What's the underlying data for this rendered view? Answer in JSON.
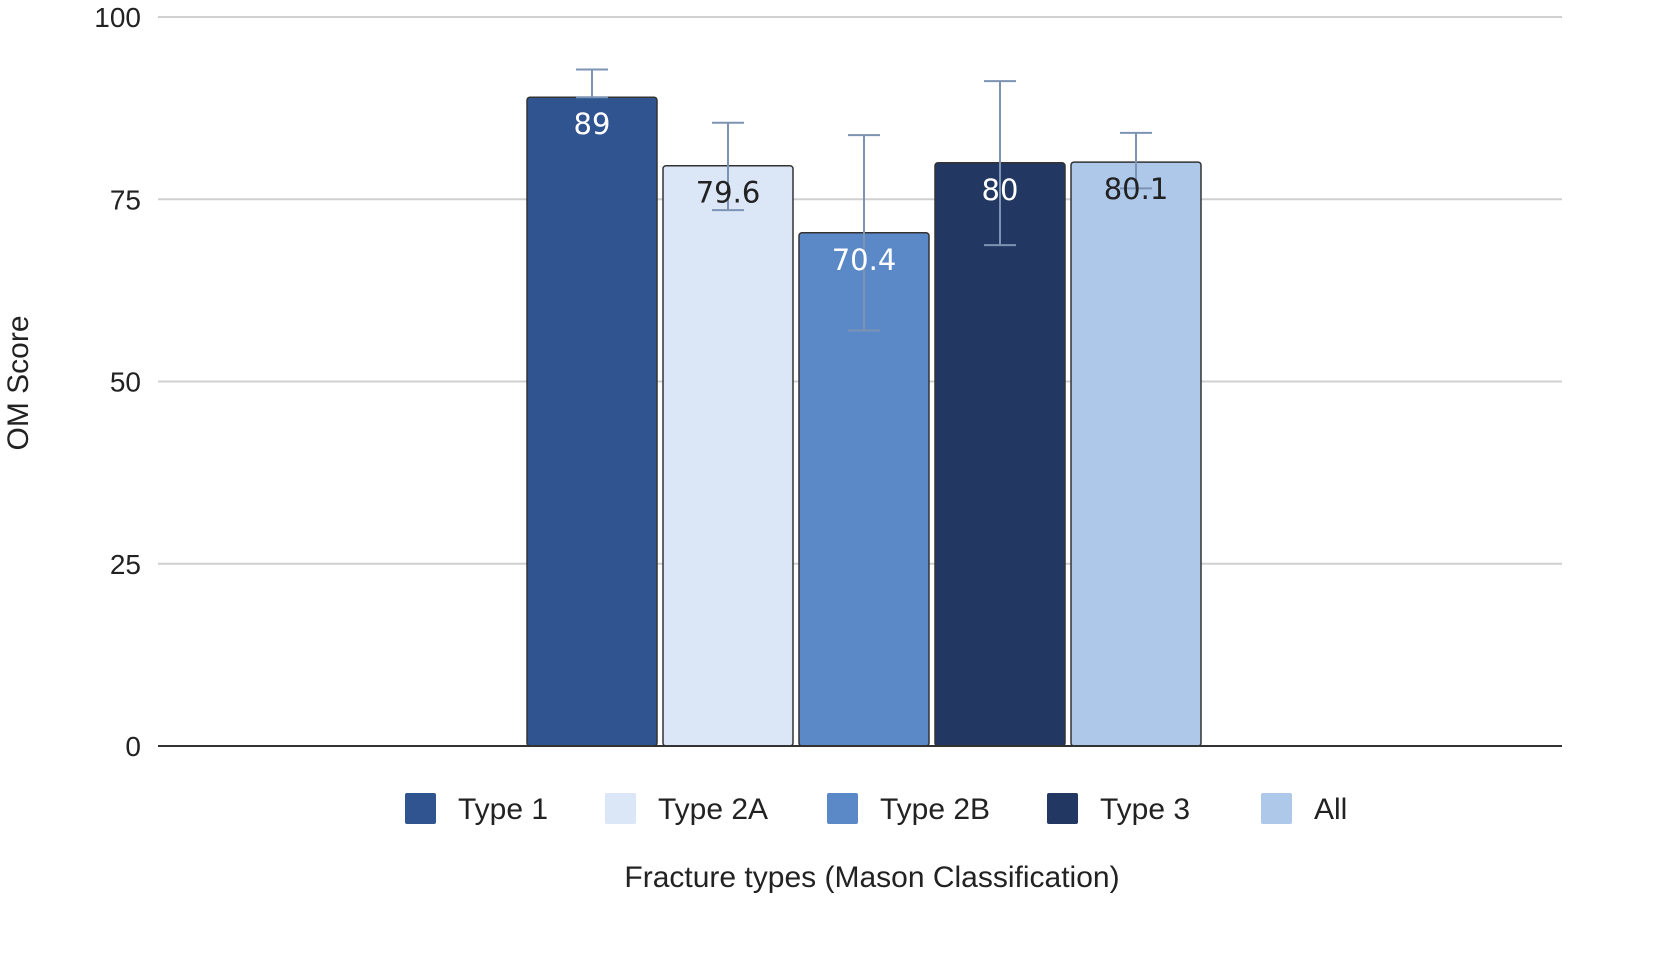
{
  "chart_data": {
    "type": "bar",
    "xlabel": "Fracture types (Mason Classification)",
    "ylabel": "OM Score",
    "ylim": [
      0,
      100
    ],
    "yticks": [
      0,
      25,
      50,
      75,
      100
    ],
    "grid": true,
    "legend_position": "bottom",
    "series": [
      {
        "name": "Type 1",
        "value": 89,
        "label": "89",
        "error": [
          89,
          92.8
        ],
        "color": "#30548f",
        "label_color": "#ffffff"
      },
      {
        "name": "Type 2A",
        "value": 79.6,
        "label": "79.6",
        "error": [
          73.5,
          85.5
        ],
        "color": "#dbe6f7",
        "label_color": "#222222"
      },
      {
        "name": "Type 2B",
        "value": 70.4,
        "label": "70.4",
        "error": [
          57,
          83.8
        ],
        "color": "#5b89c7",
        "label_color": "#ffffff"
      },
      {
        "name": "Type 3",
        "value": 80,
        "label": "80",
        "error": [
          68.7,
          91.2
        ],
        "color": "#223863",
        "label_color": "#ffffff"
      },
      {
        "name": "All",
        "value": 80.1,
        "label": "80.1",
        "error": [
          76.5,
          84.1
        ],
        "color": "#aec8ea",
        "label_color": "#222222"
      }
    ]
  }
}
